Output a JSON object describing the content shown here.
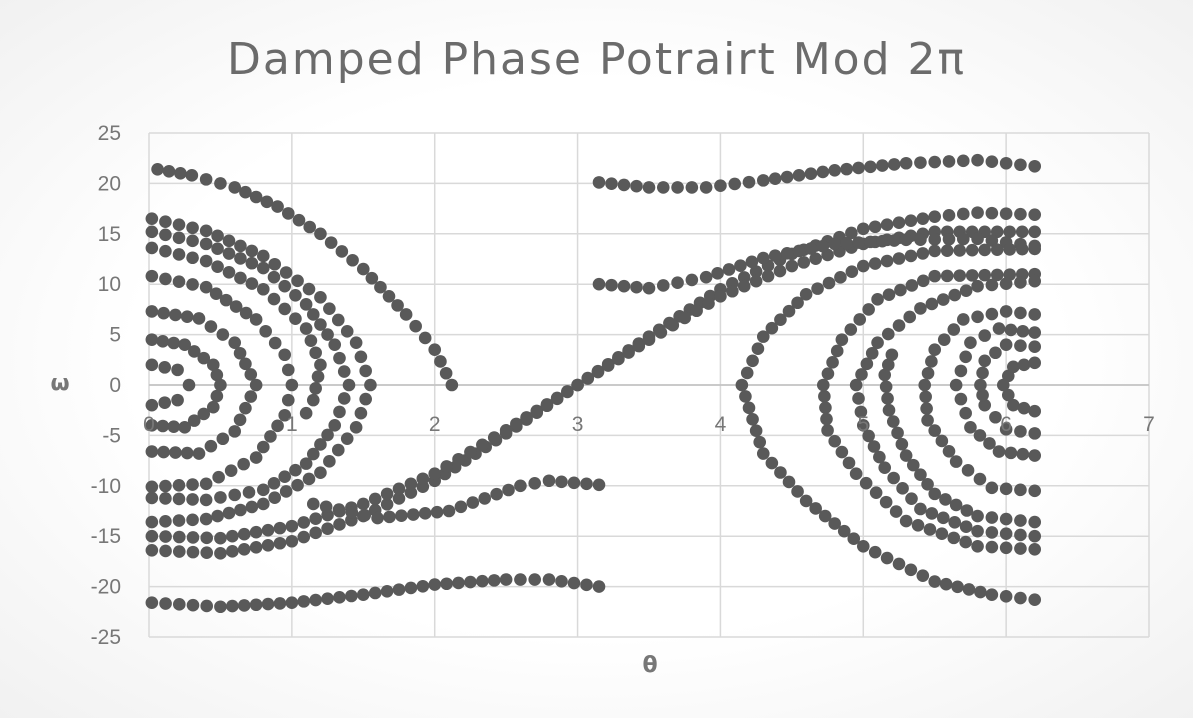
{
  "chart_data": {
    "type": "scatter",
    "title": "Damped Phase Potrairt Mod 2π",
    "xlabel": "θ",
    "ylabel": "ω",
    "xlim": [
      0,
      7
    ],
    "ylim": [
      -25,
      25
    ],
    "x_ticks": [
      "0",
      "1",
      "2",
      "3",
      "4",
      "5",
      "6",
      "7"
    ],
    "y_ticks": [
      "25",
      "20",
      "15",
      "10",
      "5",
      "0",
      "-5",
      "-10",
      "-15",
      "-20",
      "-25"
    ],
    "grid": true,
    "marker_color": "#595959",
    "series": [
      {
        "values": [
          [
            0.06,
            21.4
          ],
          [
            0.3,
            20.8
          ],
          [
            0.6,
            19.6
          ],
          [
            0.9,
            17.7
          ],
          [
            1.2,
            15.0
          ],
          [
            1.5,
            11.5
          ],
          [
            1.8,
            7.0
          ],
          [
            2.0,
            3.5
          ],
          [
            2.12,
            0.0
          ]
        ]
      },
      {
        "values": [
          [
            0.02,
            16.5
          ],
          [
            0.4,
            15.3
          ],
          [
            0.8,
            12.8
          ],
          [
            1.2,
            8.7
          ],
          [
            1.45,
            4.2
          ],
          [
            1.55,
            0.0
          ],
          [
            1.45,
            -4.2
          ],
          [
            1.2,
            -8.7
          ],
          [
            0.8,
            -11.8
          ],
          [
            0.4,
            -13.3
          ],
          [
            0.02,
            -13.6
          ]
        ]
      },
      {
        "values": [
          [
            0.02,
            15.2
          ],
          [
            0.4,
            14.0
          ],
          [
            0.8,
            11.6
          ],
          [
            1.1,
            8.0
          ],
          [
            1.3,
            4.0
          ],
          [
            1.4,
            0.0
          ],
          [
            1.3,
            -4.0
          ],
          [
            1.1,
            -7.8
          ],
          [
            0.8,
            -10.4
          ],
          [
            0.4,
            -11.4
          ],
          [
            0.02,
            -11.2
          ]
        ]
      },
      {
        "values": [
          [
            0.02,
            13.6
          ],
          [
            0.4,
            12.3
          ],
          [
            0.8,
            9.5
          ],
          [
            1.1,
            5.6
          ],
          [
            1.2,
            2.0
          ],
          [
            1.15,
            -1.5
          ],
          [
            1.1,
            -2.8
          ]
        ]
      },
      {
        "values": [
          [
            0.02,
            10.8
          ],
          [
            0.4,
            9.7
          ],
          [
            0.75,
            6.5
          ],
          [
            0.95,
            3.0
          ],
          [
            1.0,
            0.0
          ],
          [
            0.95,
            -3.0
          ],
          [
            0.75,
            -7.2
          ],
          [
            0.4,
            -9.8
          ],
          [
            0.02,
            -10.1
          ]
        ]
      },
      {
        "values": [
          [
            0.02,
            7.3
          ],
          [
            0.35,
            6.6
          ],
          [
            0.6,
            4.2
          ],
          [
            0.75,
            0.0
          ],
          [
            0.6,
            -4.6
          ],
          [
            0.35,
            -6.8
          ],
          [
            0.02,
            -6.6
          ]
        ]
      },
      {
        "values": [
          [
            0.02,
            4.5
          ],
          [
            0.25,
            4.0
          ],
          [
            0.45,
            2.0
          ],
          [
            0.5,
            0.0
          ],
          [
            0.45,
            -2.2
          ],
          [
            0.25,
            -4.2
          ],
          [
            0.02,
            -4.0
          ]
        ]
      },
      {
        "values": [
          [
            0.02,
            2.0
          ],
          [
            0.2,
            1.5
          ],
          [
            0.28,
            0.0
          ],
          [
            0.2,
            -1.5
          ],
          [
            0.02,
            -2.0
          ]
        ]
      },
      {
        "values": [
          [
            0.02,
            -16.4
          ],
          [
            0.5,
            -16.7
          ],
          [
            1.0,
            -15.5
          ],
          [
            1.5,
            -13.0
          ],
          [
            2.0,
            -9.5
          ],
          [
            2.5,
            -4.8
          ],
          [
            3.0,
            0.0
          ],
          [
            3.5,
            4.8
          ],
          [
            4.0,
            9.5
          ],
          [
            4.5,
            13.0
          ],
          [
            5.0,
            15.5
          ],
          [
            5.5,
            16.7
          ],
          [
            5.8,
            17.1
          ],
          [
            6.2,
            16.9
          ]
        ]
      },
      {
        "values": [
          [
            0.02,
            -15.0
          ],
          [
            0.5,
            -15.2
          ],
          [
            1.0,
            -14.0
          ],
          [
            1.5,
            -11.8
          ],
          [
            2.0,
            -8.8
          ],
          [
            2.5,
            -4.5
          ],
          [
            3.0,
            0.0
          ],
          [
            3.5,
            4.5
          ],
          [
            4.0,
            8.8
          ],
          [
            4.5,
            11.8
          ],
          [
            5.0,
            14.0
          ],
          [
            5.5,
            15.2
          ],
          [
            6.2,
            15.2
          ]
        ]
      },
      {
        "values": [
          [
            0.02,
            -21.6
          ],
          [
            0.5,
            -22.0
          ],
          [
            1.0,
            -21.6
          ],
          [
            1.5,
            -20.8
          ],
          [
            2.0,
            -19.8
          ],
          [
            2.5,
            -19.3
          ],
          [
            2.8,
            -19.3
          ],
          [
            3.15,
            -20.0
          ]
        ]
      },
      {
        "values": [
          [
            1.15,
            -11.8
          ],
          [
            1.6,
            -13.2
          ],
          [
            2.1,
            -12.5
          ],
          [
            2.6,
            -10.0
          ],
          [
            2.8,
            -9.5
          ],
          [
            3.15,
            -9.9
          ]
        ]
      },
      {
        "values": [
          [
            3.15,
            20.1
          ],
          [
            3.5,
            19.6
          ],
          [
            3.9,
            19.6
          ],
          [
            4.3,
            20.3
          ],
          [
            4.8,
            21.3
          ],
          [
            5.3,
            22.0
          ],
          [
            5.8,
            22.3
          ],
          [
            6.2,
            21.7
          ]
        ]
      },
      {
        "values": [
          [
            3.15,
            10.0
          ],
          [
            3.5,
            9.6
          ],
          [
            3.9,
            10.7
          ],
          [
            4.3,
            12.6
          ],
          [
            4.8,
            14.0
          ],
          [
            5.3,
            14.4
          ],
          [
            5.8,
            14.5
          ],
          [
            6.2,
            13.8
          ]
        ]
      },
      {
        "values": [
          [
            6.2,
            -21.3
          ],
          [
            5.9,
            -20.8
          ],
          [
            5.5,
            -19.5
          ],
          [
            5.0,
            -16.0
          ],
          [
            4.6,
            -11.5
          ],
          [
            4.3,
            -6.8
          ],
          [
            4.15,
            0.0
          ],
          [
            4.3,
            4.8
          ],
          [
            4.6,
            9.0
          ],
          [
            5.0,
            11.8
          ],
          [
            5.5,
            13.3
          ],
          [
            6.2,
            13.5
          ]
        ]
      },
      {
        "values": [
          [
            6.2,
            -16.3
          ],
          [
            5.8,
            -16.0
          ],
          [
            5.3,
            -13.5
          ],
          [
            4.95,
            -8.8
          ],
          [
            4.75,
            -4.5
          ],
          [
            4.72,
            0.0
          ],
          [
            4.85,
            4.5
          ],
          [
            5.1,
            8.5
          ],
          [
            5.5,
            10.8
          ],
          [
            6.2,
            11.0
          ]
        ]
      },
      {
        "values": [
          [
            6.2,
            -15.0
          ],
          [
            5.8,
            -14.5
          ],
          [
            5.4,
            -12.3
          ],
          [
            5.15,
            -8.2
          ],
          [
            5.0,
            -4.0
          ],
          [
            4.95,
            0.0
          ],
          [
            5.1,
            4.2
          ],
          [
            5.4,
            7.6
          ],
          [
            5.8,
            9.8
          ],
          [
            6.2,
            10.3
          ]
        ]
      },
      {
        "values": [
          [
            6.2,
            -13.6
          ],
          [
            5.8,
            -13.0
          ],
          [
            5.5,
            -10.8
          ],
          [
            5.3,
            -7.0
          ],
          [
            5.18,
            -2.5
          ],
          [
            5.15,
            1.0
          ],
          [
            5.2,
            3.0
          ]
        ]
      },
      {
        "values": [
          [
            6.2,
            -10.5
          ],
          [
            5.9,
            -10.2
          ],
          [
            5.65,
            -7.6
          ],
          [
            5.45,
            -3.5
          ],
          [
            5.43,
            0.0
          ],
          [
            5.5,
            3.5
          ],
          [
            5.7,
            6.5
          ],
          [
            6.0,
            7.3
          ],
          [
            6.2,
            7.0
          ]
        ]
      },
      {
        "values": [
          [
            6.2,
            -7.0
          ],
          [
            5.95,
            -6.6
          ],
          [
            5.75,
            -4.2
          ],
          [
            5.65,
            0.0
          ],
          [
            5.75,
            4.2
          ],
          [
            5.95,
            5.6
          ],
          [
            6.2,
            5.2
          ]
        ]
      },
      {
        "values": [
          [
            6.2,
            -4.8
          ],
          [
            6.0,
            -4.4
          ],
          [
            5.85,
            -2.0
          ],
          [
            5.82,
            0.0
          ],
          [
            5.85,
            2.4
          ],
          [
            6.0,
            4.0
          ],
          [
            6.2,
            3.8
          ]
        ]
      },
      {
        "values": [
          [
            6.2,
            -2.6
          ],
          [
            6.05,
            -2.0
          ],
          [
            5.98,
            0.0
          ],
          [
            6.05,
            1.8
          ],
          [
            6.2,
            2.2
          ]
        ]
      }
    ]
  }
}
